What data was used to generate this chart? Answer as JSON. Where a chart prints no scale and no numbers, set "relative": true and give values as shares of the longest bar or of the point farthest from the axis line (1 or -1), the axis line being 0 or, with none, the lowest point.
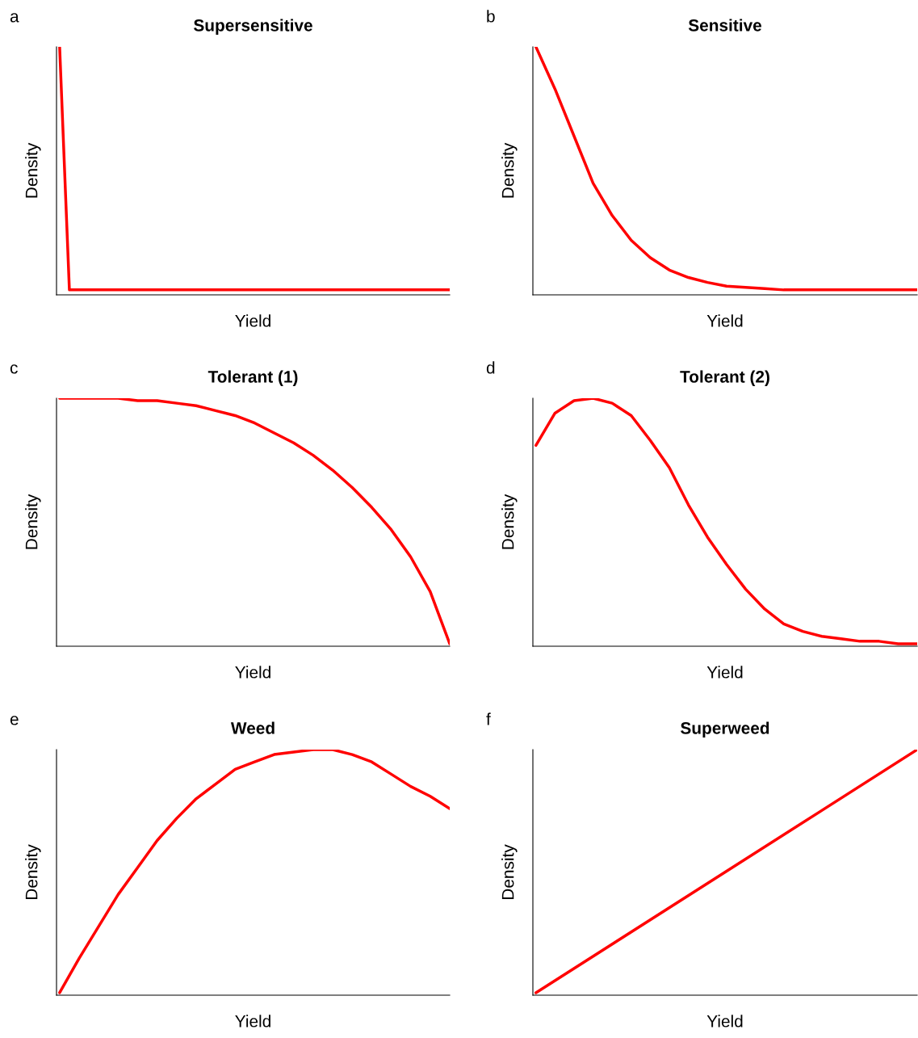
{
  "chart_data": [
    {
      "type": "line",
      "title": "Supersensitive",
      "xlabel": "Yield",
      "ylabel": "Density",
      "annotations": [
        "a"
      ],
      "relative": true,
      "color": "#ff0000",
      "categories": [
        null,
        null,
        null,
        null,
        null,
        null,
        null,
        null,
        null,
        null,
        null,
        null,
        null,
        null,
        null,
        null,
        null,
        null,
        null,
        null,
        null,
        null,
        null,
        null,
        null,
        null,
        null,
        null,
        null,
        null,
        null,
        null,
        null,
        null,
        null,
        null,
        null,
        null,
        null,
        null,
        null
      ],
      "values": [
        1,
        0.02,
        0.02,
        0.02,
        0.02,
        0.02,
        0.02,
        0.02,
        0.02,
        0.02,
        0.02,
        0.02,
        0.02,
        0.02,
        0.02,
        0.02,
        0.02,
        0.02,
        0.02,
        0.02,
        0.02,
        0.02,
        0.02,
        0.02,
        0.02,
        0.02,
        0.02,
        0.02,
        0.02,
        0.02,
        0.02,
        0.02,
        0.02,
        0.02,
        0.02,
        0.02,
        0.02,
        0.02,
        0.02,
        0.02,
        0.02
      ]
    },
    {
      "type": "line",
      "title": "Sensitive",
      "xlabel": "Yield",
      "ylabel": "Density",
      "annotations": [
        "b"
      ],
      "relative": true,
      "color": "#ff0000",
      "categories": [
        null,
        null,
        null,
        null,
        null,
        null,
        null,
        null,
        null,
        null,
        null,
        null,
        null,
        null,
        null,
        null,
        null,
        null,
        null,
        null,
        null
      ],
      "values": [
        1,
        0.83,
        0.64,
        0.45,
        0.32,
        0.22,
        0.15,
        0.1,
        0.07,
        0.05,
        0.035,
        0.03,
        0.025,
        0.02,
        0.02,
        0.02,
        0.02,
        0.02,
        0.02,
        0.02,
        0.02
      ]
    },
    {
      "type": "line",
      "title": "Tolerant (1)",
      "xlabel": "Yield",
      "ylabel": "Density",
      "annotations": [
        "c"
      ],
      "relative": true,
      "color": "#ff0000",
      "categories": [
        null,
        null,
        null,
        null,
        null,
        null,
        null,
        null,
        null,
        null,
        null,
        null,
        null,
        null,
        null,
        null,
        null,
        null,
        null,
        null,
        null
      ],
      "values": [
        1,
        1,
        1,
        1,
        0.99,
        0.99,
        0.98,
        0.97,
        0.95,
        0.93,
        0.9,
        0.86,
        0.82,
        0.77,
        0.71,
        0.64,
        0.56,
        0.47,
        0.36,
        0.22,
        0.01
      ]
    },
    {
      "type": "line",
      "title": "Tolerant (2)",
      "xlabel": "Yield",
      "ylabel": "Density",
      "annotations": [
        "d"
      ],
      "relative": true,
      "color": "#ff0000",
      "categories": [
        null,
        null,
        null,
        null,
        null,
        null,
        null,
        null,
        null,
        null,
        null,
        null,
        null,
        null,
        null,
        null,
        null,
        null,
        null,
        null,
        null
      ],
      "values": [
        0.81,
        0.94,
        0.99,
        1,
        0.98,
        0.93,
        0.83,
        0.72,
        0.57,
        0.44,
        0.33,
        0.23,
        0.15,
        0.09,
        0.06,
        0.04,
        0.03,
        0.02,
        0.02,
        0.01,
        0.01
      ]
    },
    {
      "type": "line",
      "title": "Weed",
      "xlabel": "Yield",
      "ylabel": "Density",
      "annotations": [
        "e"
      ],
      "relative": true,
      "color": "#ff0000",
      "categories": [
        null,
        null,
        null,
        null,
        null,
        null,
        null,
        null,
        null,
        null,
        null,
        null,
        null,
        null,
        null,
        null,
        null,
        null,
        null,
        null,
        null
      ],
      "values": [
        0.01,
        0.15,
        0.28,
        0.41,
        0.52,
        0.63,
        0.72,
        0.8,
        0.86,
        0.92,
        0.95,
        0.98,
        0.99,
        1,
        1,
        0.98,
        0.95,
        0.9,
        0.85,
        0.81,
        0.76
      ]
    },
    {
      "type": "line",
      "title": "Superweed",
      "xlabel": "Yield",
      "ylabel": "Density",
      "annotations": [
        "f"
      ],
      "relative": true,
      "color": "#ff0000",
      "categories": [
        null,
        null,
        null
      ],
      "values": [
        0.01,
        0.505,
        1
      ]
    }
  ]
}
